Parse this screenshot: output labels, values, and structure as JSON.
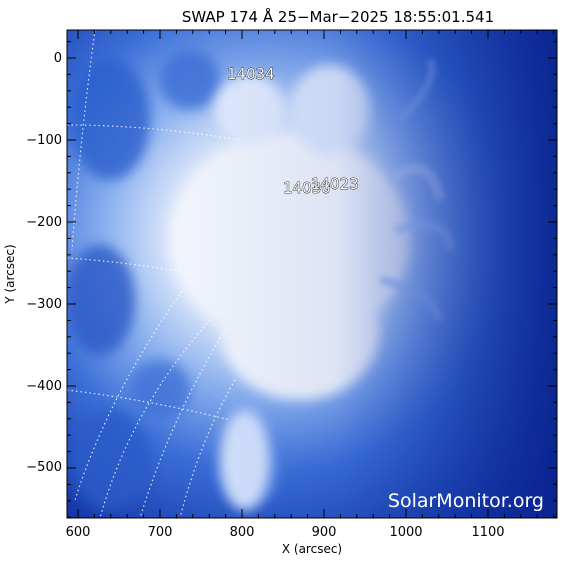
{
  "title": "SWAP 174 Å 25−Mar−2025 18:55:01.541",
  "xlabel": "X (arcsec)",
  "ylabel": "Y (arcsec)",
  "x_ticks": [
    "600",
    "700",
    "800",
    "900",
    "1000",
    "1100"
  ],
  "y_ticks": [
    "0",
    "−100",
    "−200",
    "−300",
    "−400",
    "−500"
  ],
  "active_regions": [
    "14034",
    "14030",
    "14023"
  ],
  "watermark": "SolarMonitor.org",
  "colors": {
    "background": "#0b2a9c",
    "bright": "#ffffff",
    "mid": "#5a8fe6"
  }
}
